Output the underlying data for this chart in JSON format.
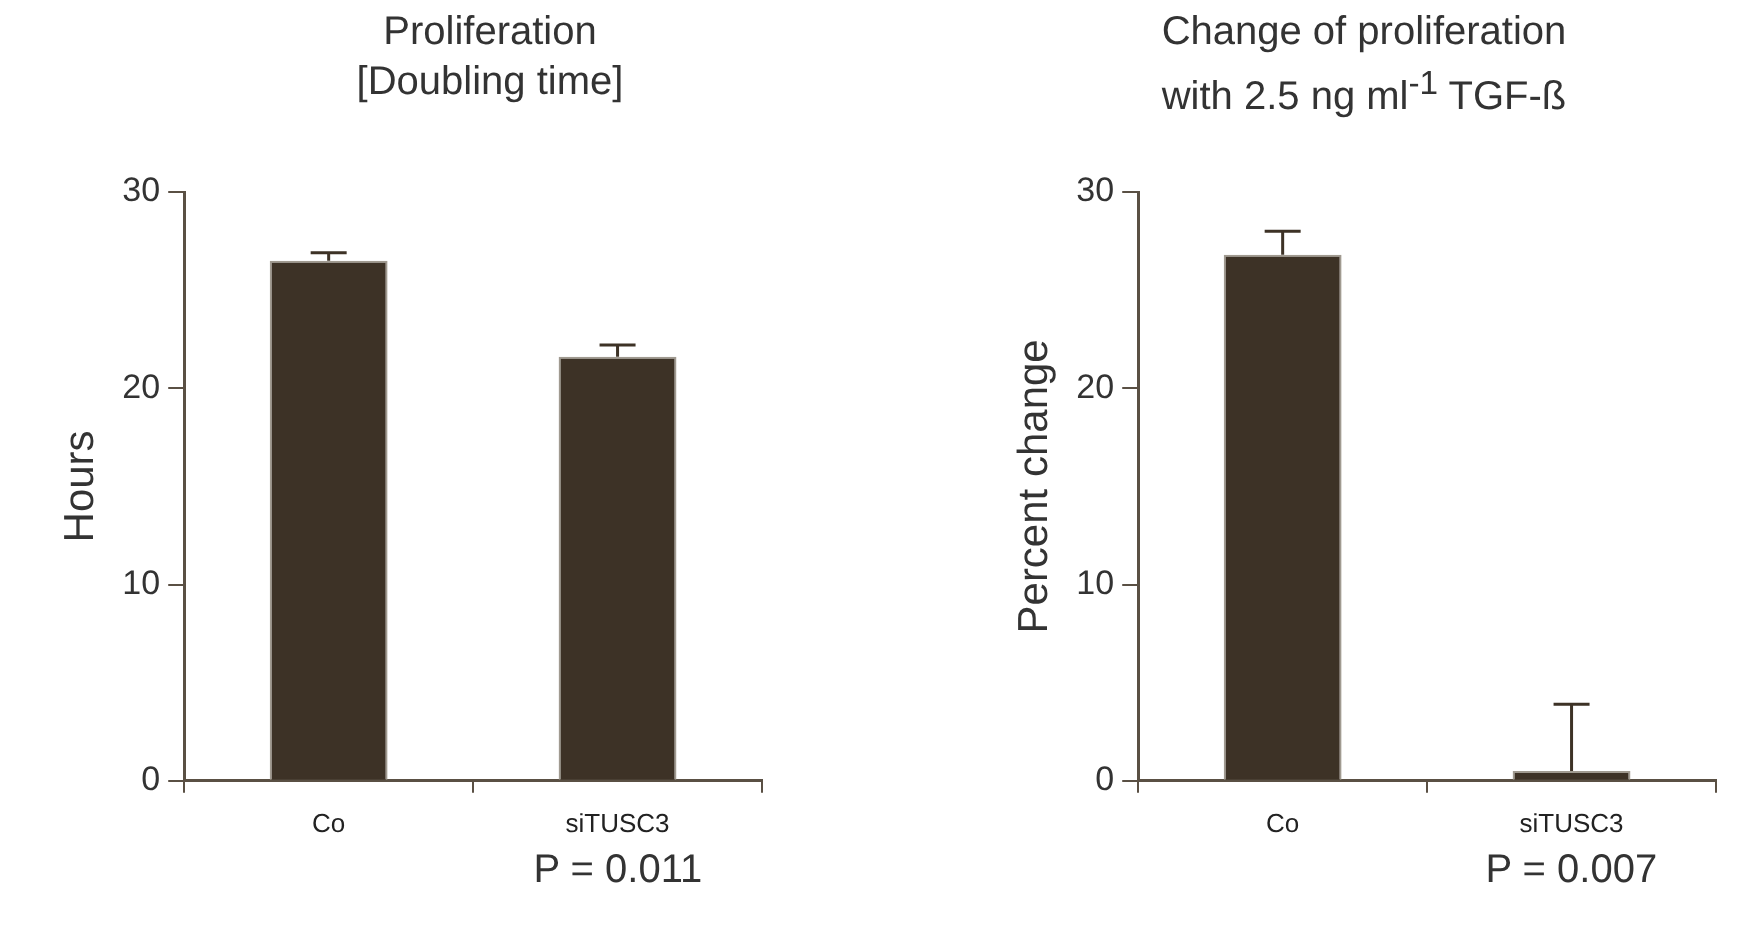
{
  "chart_data": [
    {
      "type": "bar",
      "title": "Proliferation\n[Doubling time]",
      "ylabel": "Hours",
      "categories": [
        "Co",
        "siTUSC3"
      ],
      "values": [
        26.5,
        21.6
      ],
      "errors": [
        [
          26.5,
          26.9
        ],
        [
          21.6,
          22.2
        ]
      ],
      "color": "#3d3226",
      "ylim": [
        0,
        30
      ],
      "yticks": [
        0,
        10,
        20,
        30
      ],
      "grid": false,
      "legend": false,
      "annotations": [
        "P = 0.011"
      ]
    },
    {
      "type": "bar",
      "title": "Change of proliferation\nwith 2.5 ng ml$^{-1}$ TGF-ß",
      "ylabel": "Percent change",
      "categories": [
        "Co",
        "siTUSC3"
      ],
      "values": [
        26.8,
        0.5
      ],
      "errors": [
        [
          26.8,
          28.0
        ],
        [
          0.5,
          3.9
        ]
      ],
      "color": "#3d3226",
      "ylim": [
        0,
        30
      ],
      "yticks": [
        0,
        10,
        20,
        30
      ],
      "grid": false,
      "legend": false,
      "annotations": [
        "P = 0.007"
      ]
    }
  ]
}
